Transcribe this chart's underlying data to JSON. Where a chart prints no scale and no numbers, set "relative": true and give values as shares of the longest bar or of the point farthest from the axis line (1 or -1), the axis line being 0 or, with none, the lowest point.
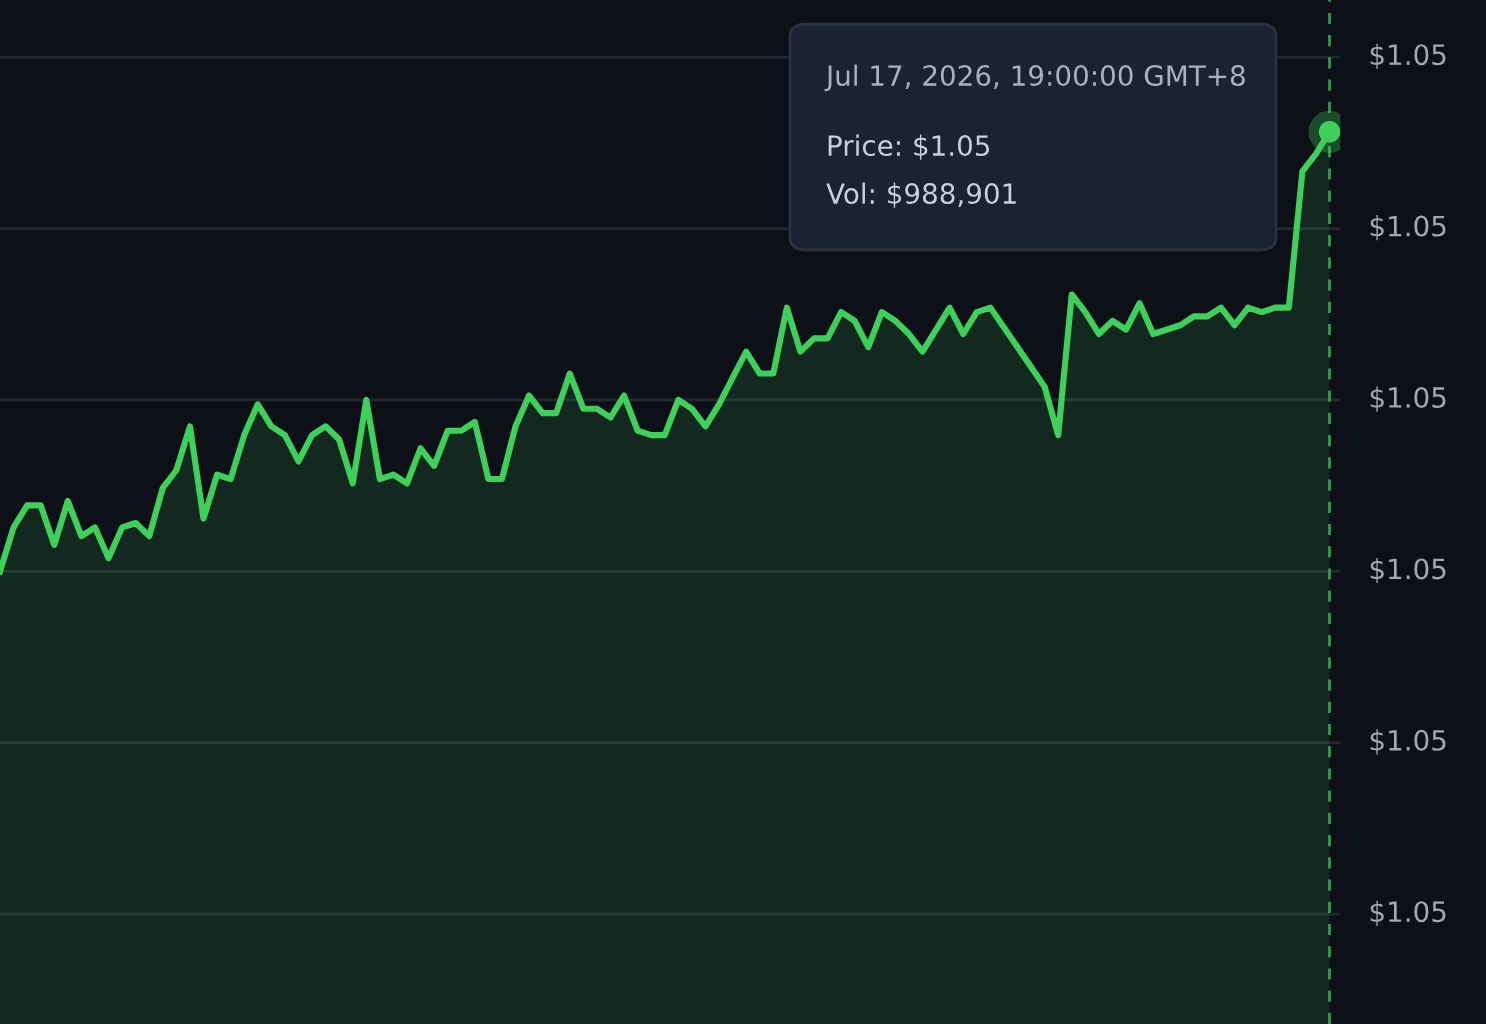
{
  "chart_data": {
    "type": "area",
    "relative": true,
    "categories": [
      null,
      null,
      null,
      null,
      null,
      null,
      null,
      null,
      null,
      null,
      null,
      null,
      null,
      null,
      null,
      null,
      null,
      null,
      null,
      null,
      null,
      null,
      null,
      null,
      null,
      null,
      null,
      null,
      null,
      null,
      null,
      null,
      null,
      null,
      null,
      null,
      null,
      null,
      null,
      null,
      null,
      null,
      null,
      null,
      null,
      null,
      null,
      null,
      null,
      null,
      null,
      null,
      null,
      null,
      null,
      null,
      null,
      null,
      null,
      null,
      null,
      null,
      null,
      null,
      null,
      null,
      null,
      null,
      null,
      null,
      null,
      null,
      null,
      null,
      null,
      null,
      null,
      null,
      null,
      null,
      null,
      null,
      null,
      null,
      null,
      null,
      null,
      null,
      null,
      null,
      null,
      null,
      null,
      null,
      null,
      null,
      null,
      null,
      null
    ],
    "series": [
      {
        "color": "#3fcf5b",
        "values": [
          0,
          0.1,
          0.15,
          0.15,
          0.06,
          0.16,
          0.08,
          0.1,
          0.03,
          0.1,
          0.11,
          0.08,
          0.19,
          0.23,
          0.33,
          0.12,
          0.22,
          0.21,
          0.31,
          0.38,
          0.33,
          0.31,
          0.25,
          0.31,
          0.33,
          0.3,
          0.2,
          0.39,
          0.21,
          0.22,
          0.2,
          0.28,
          0.24,
          0.32,
          0.32,
          0.34,
          0.21,
          0.21,
          0.33,
          0.4,
          0.36,
          0.36,
          0.45,
          0.37,
          0.37,
          0.35,
          0.4,
          0.32,
          0.31,
          0.31,
          0.39,
          0.37,
          0.33,
          0.38,
          0.44,
          0.5,
          0.45,
          0.45,
          0.6,
          0.5,
          0.53,
          0.53,
          0.59,
          0.57,
          0.51,
          0.59,
          0.57,
          0.54,
          0.5,
          null,
          0.6,
          0.54,
          0.59,
          0.6,
          null,
          null,
          null,
          0.42,
          0.31,
          0.63,
          0.59,
          0.54,
          0.57,
          0.55,
          0.61,
          0.54,
          null,
          0.56,
          0.58,
          0.58,
          0.6,
          0.56,
          0.6,
          0.59,
          0.6,
          0.6,
          0.91,
          0.95,
          1
        ]
      }
    ],
    "ref_lines": [
      {
        "axis": "y",
        "value": 1.17,
        "color": "#1f2a2e"
      },
      {
        "axis": "y",
        "value": 0.78,
        "color": "#1f2a2e"
      },
      {
        "axis": "y",
        "value": 0.39,
        "color": "#1f2a2e"
      },
      {
        "axis": "y",
        "value": 0,
        "color": "#1f2a2e"
      },
      {
        "axis": "y",
        "value": -0.39,
        "color": "#1f2a2e"
      },
      {
        "axis": "y",
        "value": -0.78,
        "color": "#1f2a2e"
      }
    ],
    "annotations": [
      "Jul 17, 2026, 19:00:00 GMT+8",
      "Price: $1.05",
      "Vol: $988,901",
      "$1.05",
      "$1.05",
      "$1.05",
      "$1.05",
      "$1.05",
      "$1.05"
    ]
  }
}
